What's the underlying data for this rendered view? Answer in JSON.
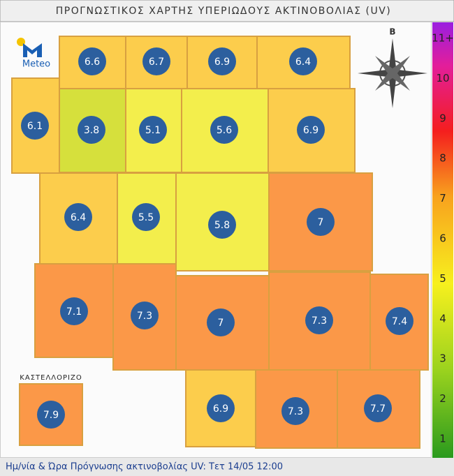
{
  "title": "ΠΡΟΓΝΩΣΤΙΚΟΣ ΧΑΡΤΗΣ ΥΠΕΡΙΩΔΟΥΣ ΑΚΤΙΝΟΒΟΛΙΑΣ (UV)",
  "logo": "Meteo",
  "compass": "Β",
  "inset_label": "ΚΑΣΤΕΛΛΟΡΙΖΟ",
  "cells": [
    6.6,
    6.7,
    6.9,
    6.4,
    6.1,
    3.8,
    5.1,
    5.6,
    6.9,
    6.4,
    5.5,
    5.8,
    7.0,
    7.1,
    7.3,
    7.0,
    7.3,
    7.4,
    6.9,
    7.3,
    7.7,
    7.9
  ],
  "scale": [
    1,
    2,
    3,
    4,
    5,
    6,
    7,
    8,
    9,
    10,
    {
      "value": 11,
      "label": "11+"
    }
  ],
  "footer": "Ημ/νία & Ώρα Πρόγνωσης ακτινοβολίας UV:  Τετ 14/05 12:00"
}
